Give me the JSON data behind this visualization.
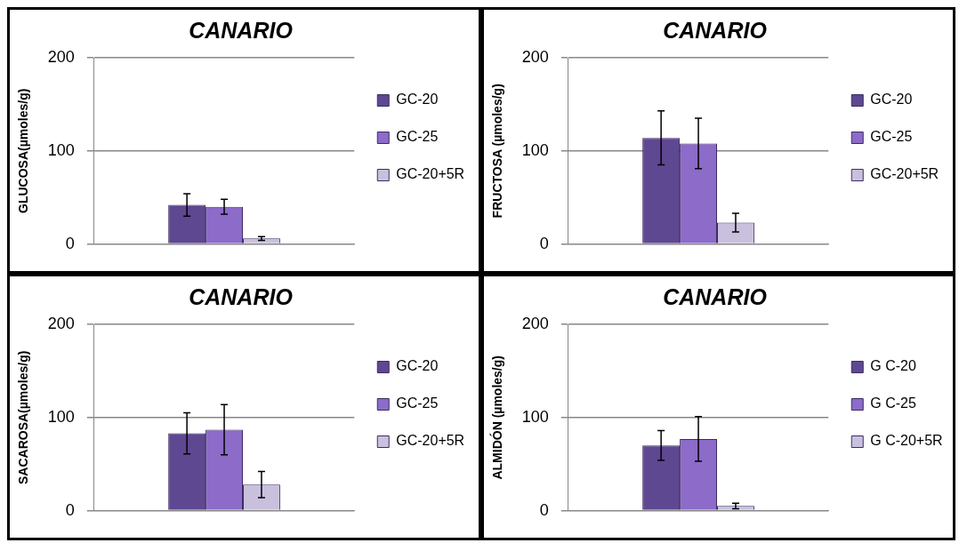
{
  "chart_data": [
    {
      "type": "bar",
      "title": "CANARIO",
      "ylabel": "GLUCOSA(µmoles/g)",
      "categories": [
        null
      ],
      "ylim": [
        0,
        200
      ],
      "yticks": [
        0,
        100,
        200
      ],
      "grid": "y",
      "legend": "right",
      "series": [
        {
          "name": "GC-20",
          "color": "#5e4891",
          "values": [
            42
          ],
          "errors": [
            12
          ]
        },
        {
          "name": "GC-25",
          "color": "#8c6bc9",
          "values": [
            40
          ],
          "errors": [
            8
          ]
        },
        {
          "name": "GC-20+5R",
          "color": "#c9c0dd",
          "values": [
            6
          ],
          "errors": [
            2
          ]
        }
      ]
    },
    {
      "type": "bar",
      "title": "CANARIO",
      "ylabel": "FRUCTOSA (µmoles/g)",
      "categories": [
        null
      ],
      "ylim": [
        0,
        200
      ],
      "yticks": [
        0,
        100,
        200
      ],
      "grid": "y",
      "legend": "right",
      "series": [
        {
          "name": "GC-20",
          "color": "#5e4891",
          "values": [
            114
          ],
          "errors": [
            29
          ]
        },
        {
          "name": "GC-25",
          "color": "#8c6bc9",
          "values": [
            108
          ],
          "errors": [
            27
          ]
        },
        {
          "name": "GC-20+5R",
          "color": "#c9c0dd",
          "values": [
            23
          ],
          "errors": [
            10
          ]
        }
      ]
    },
    {
      "type": "bar",
      "title": "CANARIO",
      "ylabel": "SACAROSA(µmoles/g)",
      "categories": [
        null
      ],
      "ylim": [
        0,
        200
      ],
      "yticks": [
        0,
        100,
        200
      ],
      "grid": "y",
      "legend": "right",
      "series": [
        {
          "name": "GC-20",
          "color": "#5e4891",
          "values": [
            83
          ],
          "errors": [
            22
          ]
        },
        {
          "name": "GC-25",
          "color": "#8c6bc9",
          "values": [
            87
          ],
          "errors": [
            27
          ]
        },
        {
          "name": "GC-20+5R",
          "color": "#c9c0dd",
          "values": [
            28
          ],
          "errors": [
            14
          ]
        }
      ]
    },
    {
      "type": "bar",
      "title": "CANARIO",
      "ylabel": "ALMIDÓN (µmoles/g)",
      "categories": [
        null
      ],
      "ylim": [
        0,
        200
      ],
      "yticks": [
        0,
        100,
        200
      ],
      "grid": "y",
      "legend": "right",
      "series": [
        {
          "name": "G C-20",
          "color": "#5e4891",
          "values": [
            70
          ],
          "errors": [
            16
          ]
        },
        {
          "name": "G C-25",
          "color": "#8c6bc9",
          "values": [
            77
          ],
          "errors": [
            24
          ]
        },
        {
          "name": "G C-20+5R",
          "color": "#c9c0dd",
          "values": [
            5
          ],
          "errors": [
            3
          ]
        }
      ]
    }
  ]
}
